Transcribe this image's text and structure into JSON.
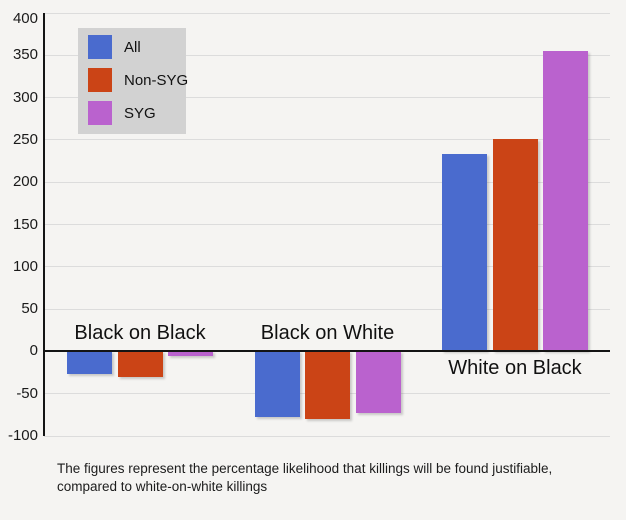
{
  "chart_data": {
    "type": "bar",
    "title": "",
    "categories": [
      "Black on Black",
      "Black on White",
      "White on Black"
    ],
    "series": [
      {
        "name": "All",
        "color": "#4a6bce",
        "values": [
          -27,
          -78,
          233
        ]
      },
      {
        "name": "Non-SYG",
        "color": "#cb4416",
        "values": [
          -30,
          -80,
          251
        ]
      },
      {
        "name": "SYG",
        "color": "#ba62ce",
        "values": [
          -6,
          -73,
          355
        ]
      }
    ],
    "ylim": [
      -100,
      400
    ],
    "yticks": [
      400,
      350,
      300,
      250,
      200,
      150,
      100,
      50,
      0,
      -50,
      -100
    ],
    "grid": true,
    "legend_position": "top-left",
    "xlabel": "",
    "ylabel": ""
  },
  "footnote": "The figures represent the percentage likelihood that killings will be found justifiable, compared to white-on-white killings",
  "colors": {
    "background": "#f5f4f2",
    "legend_background": "#d2d2d2",
    "gridline": "#dcdcdc",
    "axis": "#141414"
  }
}
